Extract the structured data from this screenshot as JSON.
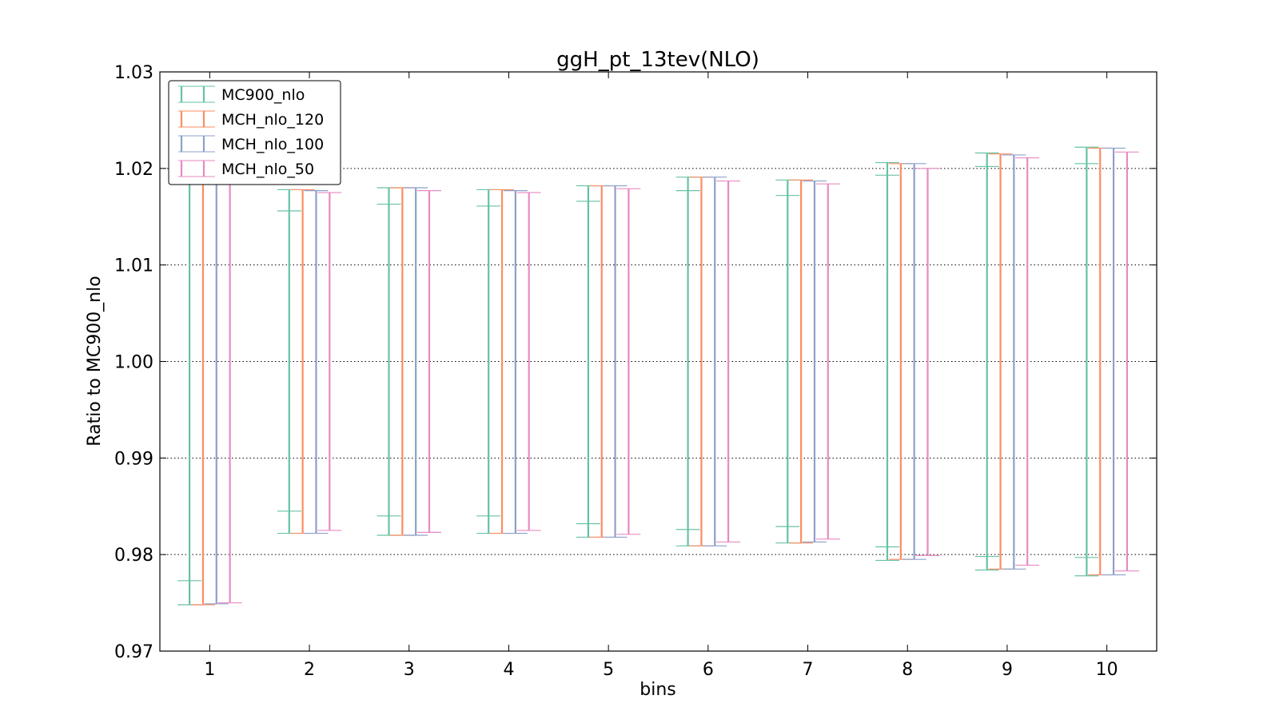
{
  "chart_data": {
    "type": "errorbar",
    "title": "ggH_pt_13tev(NLO)",
    "xlabel": "bins",
    "ylabel": "Ratio to MC900_nlo",
    "categories": [
      "1",
      "2",
      "3",
      "4",
      "5",
      "6",
      "7",
      "8",
      "9",
      "10"
    ],
    "ylim": [
      0.97,
      1.03
    ],
    "yticks": [
      "0.97",
      "0.98",
      "0.99",
      "1.00",
      "1.01",
      "1.02",
      "1.03"
    ],
    "grid": "horizontal dotted",
    "legend_position": "top-left",
    "series": [
      {
        "name": "MC900_nlo",
        "color": "#66c2a5",
        "low": [
          0.9748,
          0.9822,
          0.982,
          0.9822,
          0.9818,
          0.9809,
          0.9812,
          0.9794,
          0.9784,
          0.9778
        ],
        "high": [
          1.0252,
          1.0178,
          1.018,
          1.0178,
          1.0182,
          1.0191,
          1.0188,
          1.0206,
          1.0216,
          1.0222
        ],
        "stat_low": [
          0.9773,
          0.9845,
          0.984,
          0.984,
          0.9832,
          0.9826,
          0.9829,
          0.9808,
          0.9798,
          0.9797
        ],
        "stat_high": [
          1.0227,
          1.0156,
          1.0163,
          1.0161,
          1.0166,
          1.0177,
          1.0172,
          1.0193,
          1.0202,
          1.0205
        ]
      },
      {
        "name": "MCH_nlo_120",
        "color": "#fc8d62",
        "low": [
          0.9748,
          0.9822,
          0.982,
          0.9822,
          0.9818,
          0.9809,
          0.9812,
          0.9795,
          0.9785,
          0.9779
        ],
        "high": [
          1.0252,
          1.0178,
          1.018,
          1.0178,
          1.0182,
          1.0191,
          1.0188,
          1.0205,
          1.0215,
          1.0221
        ]
      },
      {
        "name": "MCH_nlo_100",
        "color": "#8da0cb",
        "low": [
          0.9749,
          0.9822,
          0.982,
          0.9822,
          0.9818,
          0.9809,
          0.9813,
          0.9795,
          0.9785,
          0.9779
        ],
        "high": [
          1.0252,
          1.0177,
          1.018,
          1.0177,
          1.0182,
          1.0191,
          1.0187,
          1.0205,
          1.0214,
          1.0221
        ]
      },
      {
        "name": "MCH_nlo_50",
        "color": "#e78ac3",
        "low": [
          0.975,
          0.9825,
          0.9823,
          0.9825,
          0.9821,
          0.9813,
          0.9816,
          0.9799,
          0.9789,
          0.9783
        ],
        "high": [
          1.0245,
          1.0175,
          1.0177,
          1.0175,
          1.0179,
          1.0187,
          1.0184,
          1.02,
          1.0211,
          1.0217
        ]
      }
    ]
  }
}
